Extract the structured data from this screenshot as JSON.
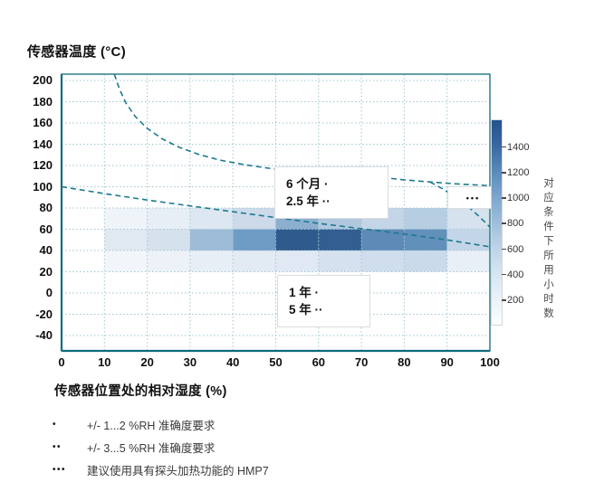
{
  "chart_data": {
    "type": "heatmap",
    "title": "传感器温度 (°C)",
    "xlabel": "传感器位置处的相对湿度 (%)",
    "ylabel": "传感器温度 (°C)",
    "xlim": [
      0,
      100
    ],
    "ylim": [
      -40,
      200
    ],
    "x_ticks": [
      0,
      10,
      20,
      30,
      40,
      50,
      60,
      70,
      80,
      90,
      100
    ],
    "y_ticks": [
      200,
      180,
      160,
      140,
      120,
      100,
      80,
      60,
      40,
      20,
      0,
      -20,
      -40
    ],
    "grid": true,
    "colors": {
      "axis": "#0f6b7d",
      "grid": "#9fc6d2",
      "curve": "#1d7a8e",
      "background": "#ffffff",
      "heat_dark": "#2f5a8c",
      "heat_light": "#f2f6fa"
    },
    "colorbar": {
      "label": "对应条件下所用小时数",
      "ticks": [
        200,
        400,
        600,
        800,
        1000,
        1200,
        1400
      ],
      "range": [
        0,
        1600
      ]
    },
    "cells": [
      {
        "x": [
          10,
          20
        ],
        "y": [
          60,
          80
        ],
        "hours": 200,
        "color": "#eff4f9"
      },
      {
        "x": [
          20,
          30
        ],
        "y": [
          60,
          80
        ],
        "hours": 300,
        "color": "#e7eef5"
      },
      {
        "x": [
          30,
          40
        ],
        "y": [
          60,
          80
        ],
        "hours": 400,
        "color": "#dde7f1"
      },
      {
        "x": [
          40,
          50
        ],
        "y": [
          60,
          80
        ],
        "hours": 550,
        "color": "#ccdae9"
      },
      {
        "x": [
          50,
          60
        ],
        "y": [
          60,
          80
        ],
        "hours": 950,
        "color": "#8cafd0"
      },
      {
        "x": [
          60,
          70
        ],
        "y": [
          60,
          80
        ],
        "hours": 700,
        "color": "#b0c7de"
      },
      {
        "x": [
          70,
          80
        ],
        "y": [
          60,
          80
        ],
        "hours": 600,
        "color": "#c3d5e7"
      },
      {
        "x": [
          80,
          90
        ],
        "y": [
          60,
          80
        ],
        "hours": 670,
        "color": "#b7cde1"
      },
      {
        "x": [
          90,
          100
        ],
        "y": [
          60,
          80
        ],
        "hours": 470,
        "color": "#d6e2ee"
      },
      {
        "x": [
          10,
          20
        ],
        "y": [
          40,
          60
        ],
        "hours": 380,
        "color": "#e0e9f2"
      },
      {
        "x": [
          20,
          30
        ],
        "y": [
          40,
          60
        ],
        "hours": 480,
        "color": "#d5e1ed"
      },
      {
        "x": [
          30,
          40
        ],
        "y": [
          40,
          60
        ],
        "hours": 820,
        "color": "#9dbcd8"
      },
      {
        "x": [
          40,
          50
        ],
        "y": [
          40,
          60
        ],
        "hours": 1100,
        "color": "#6f9cc5"
      },
      {
        "x": [
          50,
          60
        ],
        "y": [
          40,
          60
        ],
        "hours": 1560,
        "color": "#2f5a8c"
      },
      {
        "x": [
          60,
          70
        ],
        "y": [
          40,
          60
        ],
        "hours": 1520,
        "color": "#325e91"
      },
      {
        "x": [
          70,
          80
        ],
        "y": [
          40,
          60
        ],
        "hours": 1260,
        "color": "#5e8ab7"
      },
      {
        "x": [
          80,
          90
        ],
        "y": [
          40,
          60
        ],
        "hours": 1230,
        "color": "#6190ba"
      },
      {
        "x": [
          90,
          100
        ],
        "y": [
          40,
          60
        ],
        "hours": 600,
        "color": "#c3d6e8"
      },
      {
        "x": [
          10,
          20
        ],
        "y": [
          20,
          40
        ],
        "hours": 140,
        "color": "#f2f6fa"
      },
      {
        "x": [
          20,
          30
        ],
        "y": [
          20,
          40
        ],
        "hours": 220,
        "color": "#edf2f8"
      },
      {
        "x": [
          30,
          40
        ],
        "y": [
          20,
          40
        ],
        "hours": 280,
        "color": "#e8eef6"
      },
      {
        "x": [
          40,
          50
        ],
        "y": [
          20,
          40
        ],
        "hours": 350,
        "color": "#e2eaf4"
      },
      {
        "x": [
          50,
          60
        ],
        "y": [
          20,
          40
        ],
        "hours": 390,
        "color": "#dfe8f3"
      },
      {
        "x": [
          60,
          70
        ],
        "y": [
          20,
          40
        ],
        "hours": 480,
        "color": "#d5e1ee"
      },
      {
        "x": [
          70,
          80
        ],
        "y": [
          20,
          40
        ],
        "hours": 520,
        "color": "#d0ddec"
      },
      {
        "x": [
          80,
          90
        ],
        "y": [
          20,
          40
        ],
        "hours": 560,
        "color": "#cbdaea"
      },
      {
        "x": [
          90,
          100
        ],
        "y": [
          20,
          40
        ],
        "hours": 260,
        "color": "#e9eff6"
      }
    ],
    "curves": [
      {
        "name": "upper-dashed-boundary",
        "points": [
          [
            12.3,
            206
          ],
          [
            13.5,
            192
          ],
          [
            15,
            179
          ],
          [
            17.2,
            166
          ],
          [
            20,
            155
          ],
          [
            23.5,
            145
          ],
          [
            27.5,
            137
          ],
          [
            32,
            130.5
          ],
          [
            37,
            125
          ],
          [
            43,
            120.5
          ],
          [
            50,
            116.5
          ],
          [
            58,
            113.5
          ],
          [
            66,
            111
          ],
          [
            74,
            109
          ],
          [
            80,
            106.5
          ],
          [
            86,
            104.5
          ],
          [
            93,
            102.5
          ],
          [
            100,
            101
          ]
        ]
      },
      {
        "name": "upper-steep-branch",
        "points": [
          [
            86,
            104.5
          ],
          [
            89,
            98
          ],
          [
            92,
            90
          ],
          [
            95,
            81
          ],
          [
            97.5,
            72
          ],
          [
            100,
            62
          ]
        ]
      },
      {
        "name": "lower-dashed-boundary",
        "points": [
          [
            0,
            100
          ],
          [
            10,
            93.5
          ],
          [
            20,
            87.5
          ],
          [
            30,
            82
          ],
          [
            40,
            76.5
          ],
          [
            50,
            71
          ],
          [
            60,
            65.5
          ],
          [
            70,
            60.5
          ],
          [
            80,
            55.5
          ],
          [
            90,
            50
          ],
          [
            100,
            43.5
          ]
        ]
      }
    ],
    "annotations": [
      {
        "line1": "6 个月 ·",
        "line2": "2.5 年 ··"
      },
      {
        "line1": "1 年 ·",
        "line2": "5 年 ··"
      },
      {
        "dots": "•••"
      }
    ]
  },
  "legend": {
    "items": [
      {
        "marker": "•",
        "label": "+/- 1...2 %RH 准确度要求"
      },
      {
        "marker": "••",
        "label": "+/- 3...5 %RH 准确度要求"
      },
      {
        "marker": "•••",
        "label": "建议使用具有探头加热功能的 HMP7"
      }
    ]
  }
}
